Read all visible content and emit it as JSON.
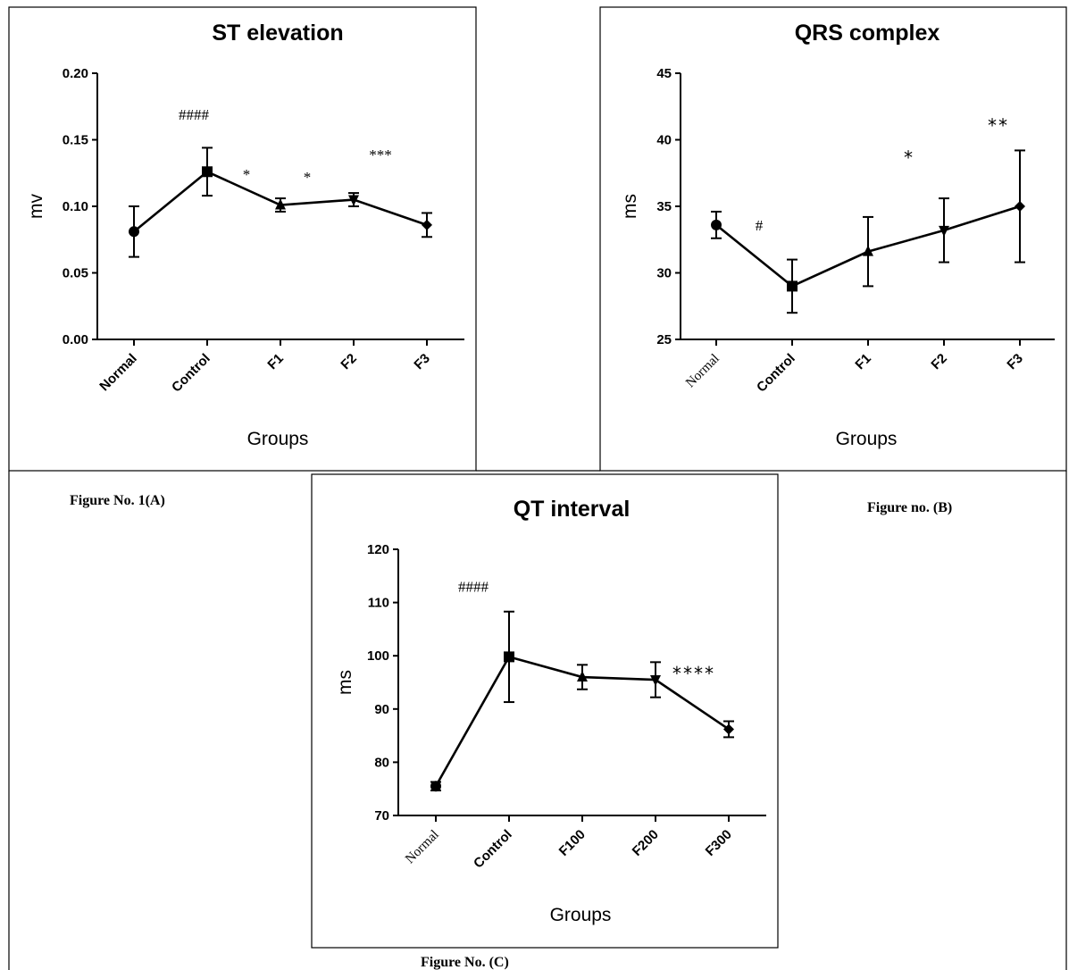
{
  "captions": {
    "a": "Figure No. 1(A)",
    "b": "Figure no. (B)",
    "c": "Figure No. (C)"
  },
  "chart_data": [
    {
      "id": "a",
      "type": "line",
      "title": "ST elevation",
      "xlabel": "Groups",
      "ylabel": "mv",
      "ylim": [
        0,
        0.2
      ],
      "yticks": [
        "0.00",
        "0.05",
        "0.10",
        "0.15",
        "0.20"
      ],
      "categories": [
        "Normal",
        "Control",
        "F1",
        "F2",
        "F3"
      ],
      "marker": [
        "circle",
        "square",
        "triangle-up",
        "triangle-down",
        "diamond"
      ],
      "values": [
        0.081,
        0.126,
        0.101,
        0.105,
        0.086
      ],
      "error": [
        0.019,
        0.018,
        0.005,
        0.005,
        0.009
      ],
      "annotations": [
        {
          "text": "####",
          "category": "Control",
          "y": 0.165,
          "dx": -15
        },
        {
          "text": "*",
          "category": "F1",
          "y": 0.12,
          "dx": -38
        },
        {
          "text": "*",
          "category": "F1",
          "y": 0.118,
          "dx": 30
        },
        {
          "text": "***",
          "category": "F2",
          "y": 0.135,
          "dx": 30
        }
      ]
    },
    {
      "id": "b",
      "type": "line",
      "title": "QRS complex",
      "xlabel": "Groups",
      "ylabel": "ms",
      "ylim": [
        25,
        45
      ],
      "yticks": [
        "25",
        "30",
        "35",
        "40",
        "45"
      ],
      "categories": [
        "Normal",
        "Control",
        "F1",
        "F2",
        "F3"
      ],
      "marker": [
        "circle",
        "square",
        "triangle-up",
        "triangle-down",
        "diamond"
      ],
      "values": [
        33.6,
        29.0,
        31.6,
        33.2,
        35.0
      ],
      "error": [
        1.0,
        2.0,
        2.6,
        2.4,
        4.2
      ],
      "annotations": [
        {
          "text": "#",
          "category": "Control",
          "y": 33.2,
          "dx": -37
        },
        {
          "text": "*",
          "category": "F2",
          "y": 38.2,
          "dx": -40
        },
        {
          "text": "**",
          "category": "F3",
          "y": 40.6,
          "dx": -25
        }
      ]
    },
    {
      "id": "c",
      "type": "line",
      "title": "QT interval",
      "xlabel": "Groups",
      "ylabel": "ms",
      "ylim": [
        70,
        120
      ],
      "yticks": [
        "70",
        "80",
        "90",
        "100",
        "110",
        "120"
      ],
      "categories": [
        "Normal",
        "Control",
        "F100",
        "F200",
        "F300"
      ],
      "marker": [
        "circle",
        "square",
        "triangle-up",
        "triangle-down",
        "diamond"
      ],
      "values": [
        75.5,
        99.8,
        96.0,
        95.5,
        86.2
      ],
      "error": [
        0.8,
        8.5,
        2.3,
        3.3,
        1.5
      ],
      "annotations": [
        {
          "text": "####",
          "category": "Control",
          "y": 112,
          "dx": -40
        },
        {
          "text": "****",
          "category": "F200",
          "y": 95.5,
          "dx": 42
        }
      ]
    }
  ]
}
